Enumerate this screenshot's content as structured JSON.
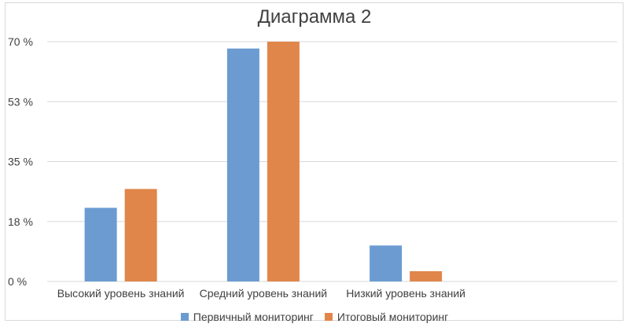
{
  "chart_data": {
    "type": "bar",
    "title": "Диаграмма 2",
    "categories": [
      "Высокий уровень знаний",
      "Средний уровень знаний",
      "Низкий уровень знаний"
    ],
    "series": [
      {
        "name": "Первичный мониторинг",
        "values": [
          21.5,
          68,
          10.5
        ],
        "color": "#6b9bd1"
      },
      {
        "name": "Итоговый мониторинг",
        "values": [
          27,
          70,
          3
        ],
        "color": "#e1864a"
      }
    ],
    "ylim": [
      0,
      70
    ],
    "y_ticks": [
      "0 %",
      "18 %",
      "35 %",
      "53 %",
      "70 %"
    ],
    "y_tick_values": [
      0,
      17.5,
      35,
      52.5,
      70
    ],
    "grid": true,
    "legend": "bottom"
  }
}
